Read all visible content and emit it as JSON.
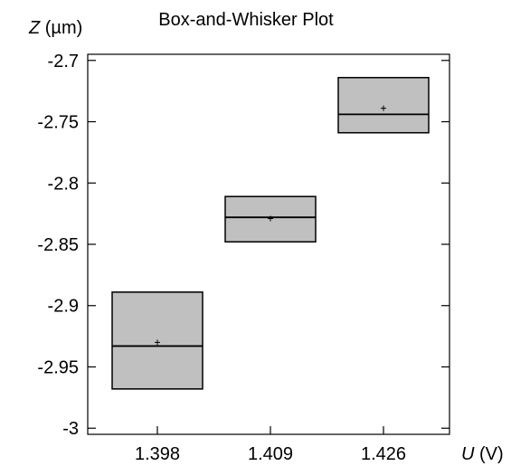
{
  "chart_data": {
    "type": "box",
    "title": "Box-and-Whisker Plot",
    "ylabel": {
      "symbol": "Z",
      "unit": " (µm)"
    },
    "xlabel": {
      "symbol": "U",
      "unit": " (V)"
    },
    "categories": [
      "1.398",
      "1.409",
      "1.426"
    ],
    "ylim": [
      -3.005,
      -2.695
    ],
    "yticks": [
      {
        "value": -2.7,
        "label": "-2.7"
      },
      {
        "value": -2.75,
        "label": "-2.75"
      },
      {
        "value": -2.8,
        "label": "-2.8"
      },
      {
        "value": -2.85,
        "label": "-2.85"
      },
      {
        "value": -2.9,
        "label": "-2.9"
      },
      {
        "value": -2.95,
        "label": "-2.95"
      },
      {
        "value": -3.0,
        "label": "-3"
      }
    ],
    "boxes": [
      {
        "category": "1.398",
        "min": -2.968,
        "q1": -2.968,
        "median": -2.933,
        "q3": -2.889,
        "max": -2.889,
        "mean": -2.93
      },
      {
        "category": "1.409",
        "min": -2.848,
        "q1": -2.848,
        "median": -2.828,
        "q3": -2.811,
        "max": -2.811,
        "mean": -2.829
      },
      {
        "category": "1.426",
        "min": -2.759,
        "q1": -2.759,
        "median": -2.744,
        "q3": -2.714,
        "max": -2.714,
        "mean": -2.739
      }
    ],
    "colors": {
      "box_fill": "#c0c0c0",
      "stroke": "#000000"
    },
    "grid": false,
    "legend": "none"
  }
}
